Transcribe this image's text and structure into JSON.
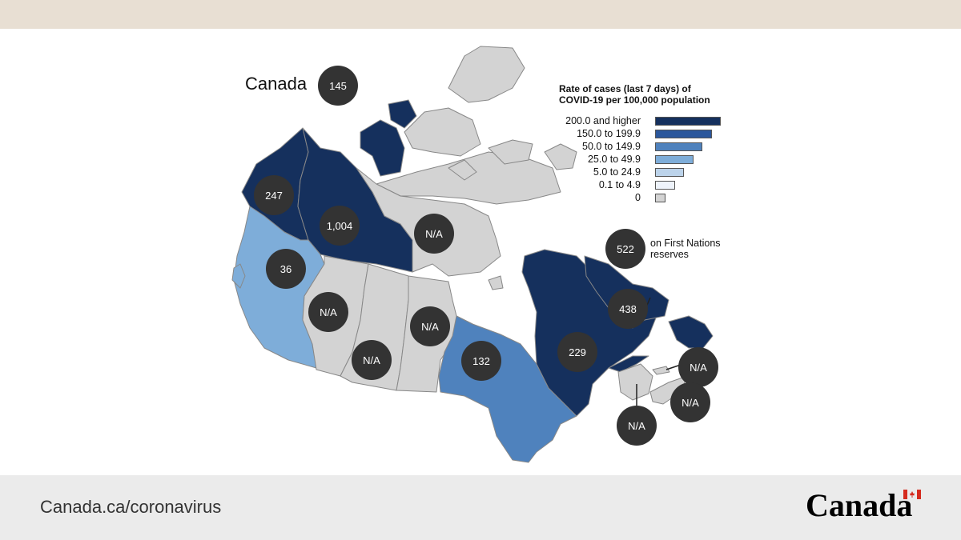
{
  "title": "Canada",
  "national_value": "145",
  "legend": {
    "title_line1": "Rate of cases (last 7 days) of",
    "title_line2": "COVID-19 per 100,000 population",
    "items": [
      {
        "label": "200.0 and higher",
        "color": "#15305d",
        "level": 1.0
      },
      {
        "label": "150.0 to 199.9",
        "color": "#2b579c",
        "level": 0.86
      },
      {
        "label": "50.0 to 149.9",
        "color": "#4f82bd",
        "level": 0.72
      },
      {
        "label": "25.0 to 49.9",
        "color": "#7eadd9",
        "level": 0.58
      },
      {
        "label": "5.0 to 24.9",
        "color": "#bcd3ea",
        "level": 0.44
      },
      {
        "label": "0.1 to 4.9",
        "color": "#eef3fb",
        "level": 0.3
      },
      {
        "label": "0",
        "color": "#d3d3d3",
        "level": 0.16
      }
    ]
  },
  "regions": [
    {
      "key": "yukon",
      "value": "247",
      "color": "#15305d"
    },
    {
      "key": "northwest-territories",
      "value": "1,004",
      "color": "#15305d"
    },
    {
      "key": "nunavut",
      "value": "N/A",
      "color": "#d3d3d3"
    },
    {
      "key": "british-columbia",
      "value": "36",
      "color": "#7eadd9"
    },
    {
      "key": "alberta",
      "value": "N/A",
      "color": "#d3d3d3"
    },
    {
      "key": "saskatchewan",
      "value": "N/A",
      "color": "#d3d3d3"
    },
    {
      "key": "manitoba",
      "value": "N/A",
      "color": "#d3d3d3"
    },
    {
      "key": "ontario",
      "value": "132",
      "color": "#4f82bd"
    },
    {
      "key": "quebec",
      "value": "229",
      "color": "#15305d"
    },
    {
      "key": "newfoundland-labrador",
      "value": "438",
      "color": "#15305d"
    },
    {
      "key": "prince-edward-island",
      "value": "N/A",
      "color": "#d3d3d3"
    },
    {
      "key": "nova-scotia",
      "value": "N/A",
      "color": "#d3d3d3"
    },
    {
      "key": "new-brunswick",
      "value": "N/A",
      "color": "#d3d3d3"
    }
  ],
  "first_nations": {
    "value": "522",
    "label_line1": "on First Nations",
    "label_line2": "reserves"
  },
  "footer": {
    "url": "Canada.ca/coronavirus",
    "wordmark": "Canada"
  },
  "colors": {
    "top_band": "#e8dfd3",
    "footer_bg": "#ebebeb",
    "bubble": "#333333",
    "border": "#888888"
  }
}
